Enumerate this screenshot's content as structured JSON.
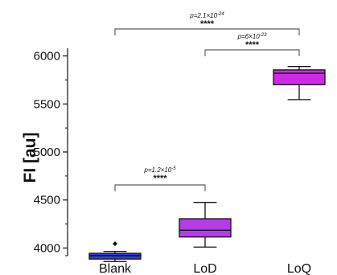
{
  "chart_data": {
    "type": "box",
    "title": "",
    "xlabel": "",
    "ylabel": "FI [au]",
    "ylim": [
      3920,
      6080
    ],
    "yticks": [
      "4000",
      "4500",
      "5000",
      "5500",
      "6000"
    ],
    "grid": false,
    "categories": [
      "Blank",
      "LoD",
      "LoQ"
    ],
    "boxes": [
      {
        "category": "Blank",
        "whisker_low": 3860,
        "q1": 3885,
        "median": 3920,
        "q3": 3945,
        "whisker_high": 3965,
        "outliers": [
          4045
        ],
        "color": "#2f3fd8"
      },
      {
        "category": "LoD",
        "whisker_low": 4010,
        "q1": 4115,
        "median": 4185,
        "q3": 4305,
        "whisker_high": 4475,
        "outliers": [],
        "color": "#b43de8"
      },
      {
        "category": "LoQ",
        "whisker_low": 5545,
        "q1": 5700,
        "median": 5820,
        "q3": 5855,
        "whisker_high": 5890,
        "outliers": [],
        "color": "#c82ee0"
      }
    ],
    "comparisons": [
      {
        "from": "Blank",
        "to": "LoQ",
        "p_label": "p=2.1×10",
        "p_exp": "-24",
        "stars": "****"
      },
      {
        "from": "LoD",
        "to": "LoQ",
        "p_label": "p=6×10",
        "p_exp": "-23",
        "stars": "****"
      },
      {
        "from": "Blank",
        "to": "LoD",
        "p_label": "p=1.2×10",
        "p_exp": "-5",
        "stars": "****"
      }
    ]
  }
}
